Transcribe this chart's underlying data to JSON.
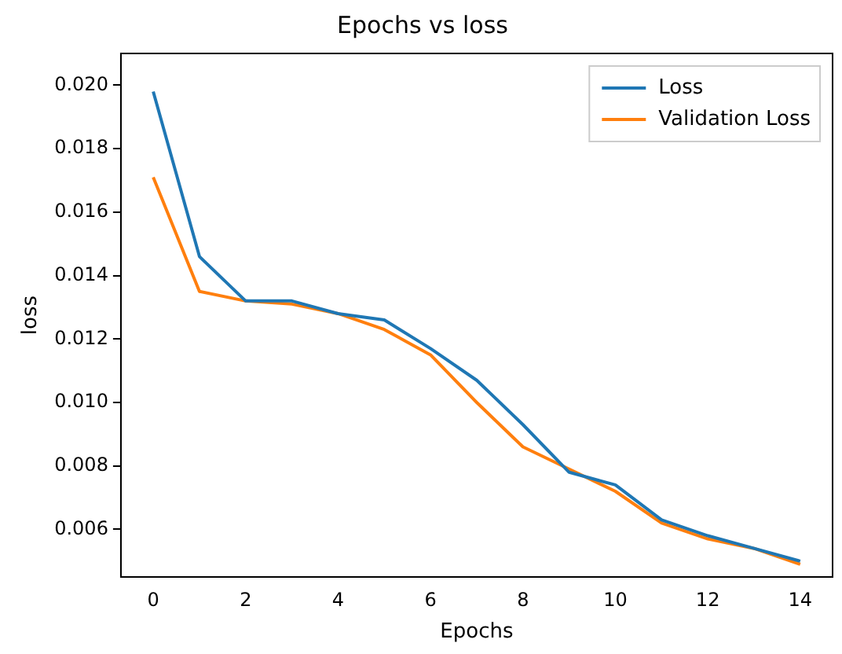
{
  "chart_data": {
    "type": "line",
    "title": "Epochs vs loss",
    "xlabel": "Epochs",
    "ylabel": "loss",
    "x": [
      0,
      1,
      2,
      3,
      4,
      5,
      6,
      7,
      8,
      9,
      10,
      11,
      12,
      13,
      14
    ],
    "series": [
      {
        "name": "Loss",
        "color": "#1f77b4",
        "values": [
          0.0198,
          0.0146,
          0.0132,
          0.0132,
          0.0128,
          0.0126,
          0.0117,
          0.0107,
          0.0093,
          0.0078,
          0.0074,
          0.0063,
          0.0058,
          0.0054,
          0.005
        ]
      },
      {
        "name": "Validation Loss",
        "color": "#ff7f0e",
        "values": [
          0.0171,
          0.0135,
          0.0132,
          0.0131,
          0.0128,
          0.0123,
          0.0115,
          0.01,
          0.0086,
          0.0079,
          0.0072,
          0.0062,
          0.0057,
          0.0054,
          0.0049
        ]
      }
    ],
    "xlim": [
      -0.7,
      14.7
    ],
    "xticks": [
      0,
      2,
      4,
      6,
      8,
      10,
      12,
      14
    ],
    "ylim": [
      0.0045,
      0.021
    ],
    "yticks": [
      {
        "value": 0.006,
        "label": "0.006"
      },
      {
        "value": 0.008,
        "label": "0.008"
      },
      {
        "value": 0.01,
        "label": "0.010"
      },
      {
        "value": 0.012,
        "label": "0.012"
      },
      {
        "value": 0.014,
        "label": "0.014"
      },
      {
        "value": 0.016,
        "label": "0.016"
      },
      {
        "value": 0.018,
        "label": "0.018"
      },
      {
        "value": 0.02,
        "label": "0.020"
      }
    ],
    "grid": false,
    "legend": "top right",
    "marker": "none",
    "line_style": "solid"
  }
}
